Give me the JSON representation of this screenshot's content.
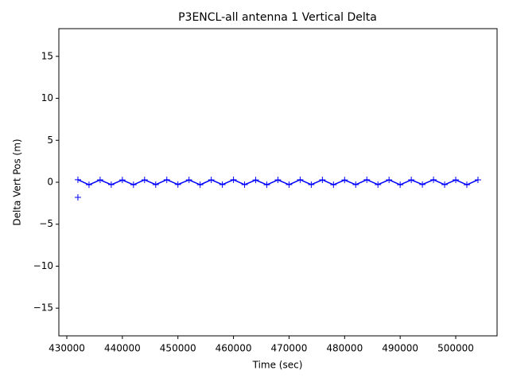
{
  "chart_data": {
    "type": "scatter",
    "title": "P3ENCL-all antenna 1 Vertical Delta",
    "x_label": "Time (sec)",
    "y_label": "Delta Vert Pos (m)",
    "xlim": [
      428570,
      507440
    ],
    "ylim": [
      -18.3,
      18.3
    ],
    "xticks": [
      430000,
      440000,
      450000,
      460000,
      470000,
      480000,
      490000,
      500000
    ],
    "yticks": [
      {
        "value": -15,
        "label": "−15"
      },
      {
        "value": -10,
        "label": "−10"
      },
      {
        "value": -5,
        "label": "−5"
      },
      0,
      5,
      10,
      15
    ],
    "marker": "+",
    "series": [
      {
        "color": "#0000ff",
        "line": true,
        "x": [
          432000,
          434000,
          436000,
          438000,
          440000,
          442000,
          444000,
          446000,
          448000,
          450000,
          452000,
          454000,
          456000,
          458000,
          460000,
          462000,
          464000,
          466000,
          468000,
          470000,
          472000,
          474000,
          476000,
          478000,
          480000,
          482000,
          484000,
          486000,
          488000,
          490000,
          492000,
          494000,
          496000,
          498000,
          500000,
          502000,
          504000
        ],
        "y": [
          0.3,
          -0.3,
          0.28,
          -0.29,
          0.27,
          -0.3,
          0.29,
          -0.28,
          0.3,
          -0.27,
          0.28,
          -0.3,
          0.29,
          -0.28,
          0.3,
          -0.29,
          0.27,
          -0.3,
          0.28,
          -0.29,
          0.3,
          -0.28,
          0.29,
          -0.3,
          0.27,
          -0.29,
          0.3,
          -0.28,
          0.29,
          -0.3,
          0.28,
          -0.27,
          0.3,
          -0.29,
          0.28,
          -0.3,
          0.29
        ]
      },
      {
        "color": "#0000ff",
        "line": false,
        "x": [
          432000
        ],
        "y": [
          -1.8
        ]
      }
    ]
  }
}
